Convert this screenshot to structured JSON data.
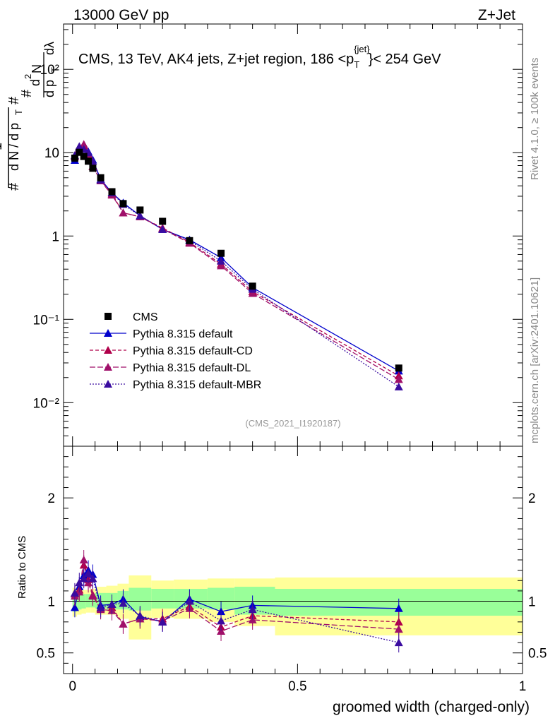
{
  "header": {
    "left": "13000 GeV pp",
    "right": "Z+Jet"
  },
  "side_labels": {
    "rivet": "Rivet 4.1.0, ≥ 100k events",
    "mcplots": "mcplots.cern.ch [arXiv:2401.10621]"
  },
  "colors": {
    "data": "#000000",
    "default": "#0000cc",
    "cd": "#b0004a",
    "dl": "#a0106a",
    "mbr": "#3a0ca0",
    "band_yellow": "#ffff99",
    "band_green": "#99ff99"
  },
  "chart_data": [
    {
      "type": "scatter",
      "panel": "main",
      "title": "CMS, 13 TeV, AK4 jets, Z+jet region, 186 <p",
      "title_sup": "{jet}",
      "title_sub": "T",
      "title_tail": "}< 254 GeV",
      "ylabel": "1/N dN/dλ",
      "yscale": "log",
      "ylim": [
        0.003,
        350
      ],
      "xlim": [
        -0.02,
        1.0
      ],
      "y_ticks": [
        {
          "value": 0.01,
          "label": "10⁻²"
        },
        {
          "value": 0.1,
          "label": "10⁻¹"
        },
        {
          "value": 1,
          "label": "1"
        },
        {
          "value": 10,
          "label": "10"
        },
        {
          "value": 100,
          "label": "10²"
        }
      ],
      "watermark": "(CMS_2021_I1920187)",
      "legend": [
        "CMS",
        "Pythia 8.315 default",
        "Pythia 8.315 default-CD",
        "Pythia 8.315 default-DL",
        "Pythia 8.315 default-MBR"
      ],
      "x": [
        0.005,
        0.015,
        0.025,
        0.035,
        0.045,
        0.0625,
        0.0875,
        0.1125,
        0.15,
        0.2,
        0.26,
        0.33,
        0.4,
        0.725
      ],
      "series": [
        {
          "name": "CMS",
          "values": [
            8.6,
            10.1,
            9.0,
            7.9,
            6.5,
            5.0,
            3.4,
            2.45,
            2.05,
            1.5,
            0.88,
            0.62,
            0.25,
            0.026
          ]
        },
        {
          "name": "Pythia 8.315 default",
          "values": [
            8.1,
            11.5,
            11.3,
            10.3,
            8.2,
            4.8,
            3.3,
            2.5,
            1.75,
            1.2,
            0.9,
            0.55,
            0.24,
            0.024
          ]
        },
        {
          "name": "Pythia 8.315 default-CD",
          "values": [
            9.2,
            11.2,
            12.1,
            9.6,
            6.9,
            4.65,
            3.2,
            1.9,
            1.7,
            1.25,
            0.84,
            0.46,
            0.215,
            0.021
          ]
        },
        {
          "name": "Pythia 8.315 default-DL",
          "values": [
            9.0,
            11.0,
            12.6,
            9.3,
            6.8,
            4.6,
            3.1,
            1.9,
            1.7,
            1.22,
            0.82,
            0.44,
            0.205,
            0.019
          ]
        },
        {
          "name": "Pythia 8.315 default-MBR",
          "values": [
            9.3,
            11.9,
            11.0,
            10.0,
            7.9,
            4.7,
            3.3,
            2.4,
            1.75,
            1.2,
            0.88,
            0.5,
            0.23,
            0.0155
          ]
        }
      ]
    },
    {
      "type": "scatter",
      "panel": "ratio",
      "ylabel": "Ratio to CMS",
      "xlabel": "groomed width (charged-only)",
      "ylim": [
        0.3,
        2.5
      ],
      "xlim": [
        -0.02,
        1.0
      ],
      "y_ticks": [
        {
          "value": 0.5,
          "label": "0.5"
        },
        {
          "value": 1,
          "label": "1"
        },
        {
          "value": 2,
          "label": "2"
        }
      ],
      "x_ticks": [
        {
          "value": 0,
          "label": "0"
        },
        {
          "value": 0.5,
          "label": "0.5"
        },
        {
          "value": 1,
          "label": "1"
        }
      ],
      "band_edges": [
        0,
        0.01,
        0.02,
        0.03,
        0.04,
        0.05,
        0.075,
        0.1,
        0.125,
        0.175,
        0.225,
        0.3,
        0.36,
        0.45,
        1.0
      ],
      "band_green": [
        [
          0.9,
          1.08
        ],
        [
          0.92,
          1.08
        ],
        [
          0.93,
          1.07
        ],
        [
          0.94,
          1.07
        ],
        [
          0.94,
          1.07
        ],
        [
          0.93,
          1.08
        ],
        [
          0.92,
          1.08
        ],
        [
          0.92,
          1.1
        ],
        [
          0.91,
          1.13
        ],
        [
          0.93,
          1.12
        ],
        [
          0.93,
          1.12
        ],
        [
          0.92,
          1.13
        ],
        [
          0.87,
          1.14
        ],
        [
          0.86,
          1.12
        ]
      ],
      "band_yellow": [
        [
          0.85,
          1.13
        ],
        [
          0.87,
          1.12
        ],
        [
          0.88,
          1.11
        ],
        [
          0.89,
          1.11
        ],
        [
          0.89,
          1.12
        ],
        [
          0.87,
          1.14
        ],
        [
          0.87,
          1.15
        ],
        [
          0.83,
          1.17
        ],
        [
          0.63,
          1.25
        ],
        [
          0.84,
          1.2
        ],
        [
          0.83,
          1.21
        ],
        [
          0.8,
          1.22
        ],
        [
          0.76,
          1.22
        ],
        [
          0.67,
          1.23
        ]
      ],
      "x": [
        0.005,
        0.015,
        0.025,
        0.035,
        0.045,
        0.0625,
        0.0875,
        0.1125,
        0.15,
        0.2,
        0.26,
        0.33,
        0.4,
        0.725
      ],
      "series": [
        {
          "name": "Pythia 8.315 default",
          "values": [
            0.94,
            1.14,
            1.25,
            1.3,
            1.26,
            0.96,
            0.97,
            1.02,
            0.85,
            0.8,
            1.02,
            0.9,
            0.96,
            0.93
          ]
        },
        {
          "name": "Pythia 8.315 default-CD",
          "values": [
            1.07,
            1.11,
            1.35,
            1.21,
            1.06,
            0.93,
            0.94,
            0.78,
            0.83,
            0.83,
            0.95,
            0.75,
            0.86,
            0.8
          ]
        },
        {
          "name": "Pythia 8.315 default-DL",
          "values": [
            1.05,
            1.09,
            1.4,
            1.18,
            1.05,
            0.92,
            0.91,
            0.78,
            0.83,
            0.81,
            0.93,
            0.71,
            0.82,
            0.73
          ]
        },
        {
          "name": "Pythia 8.315 default-MBR",
          "values": [
            1.08,
            1.18,
            1.22,
            1.27,
            1.22,
            0.94,
            0.97,
            0.98,
            0.86,
            0.8,
            1.0,
            0.81,
            0.92,
            0.6
          ]
        }
      ]
    }
  ]
}
